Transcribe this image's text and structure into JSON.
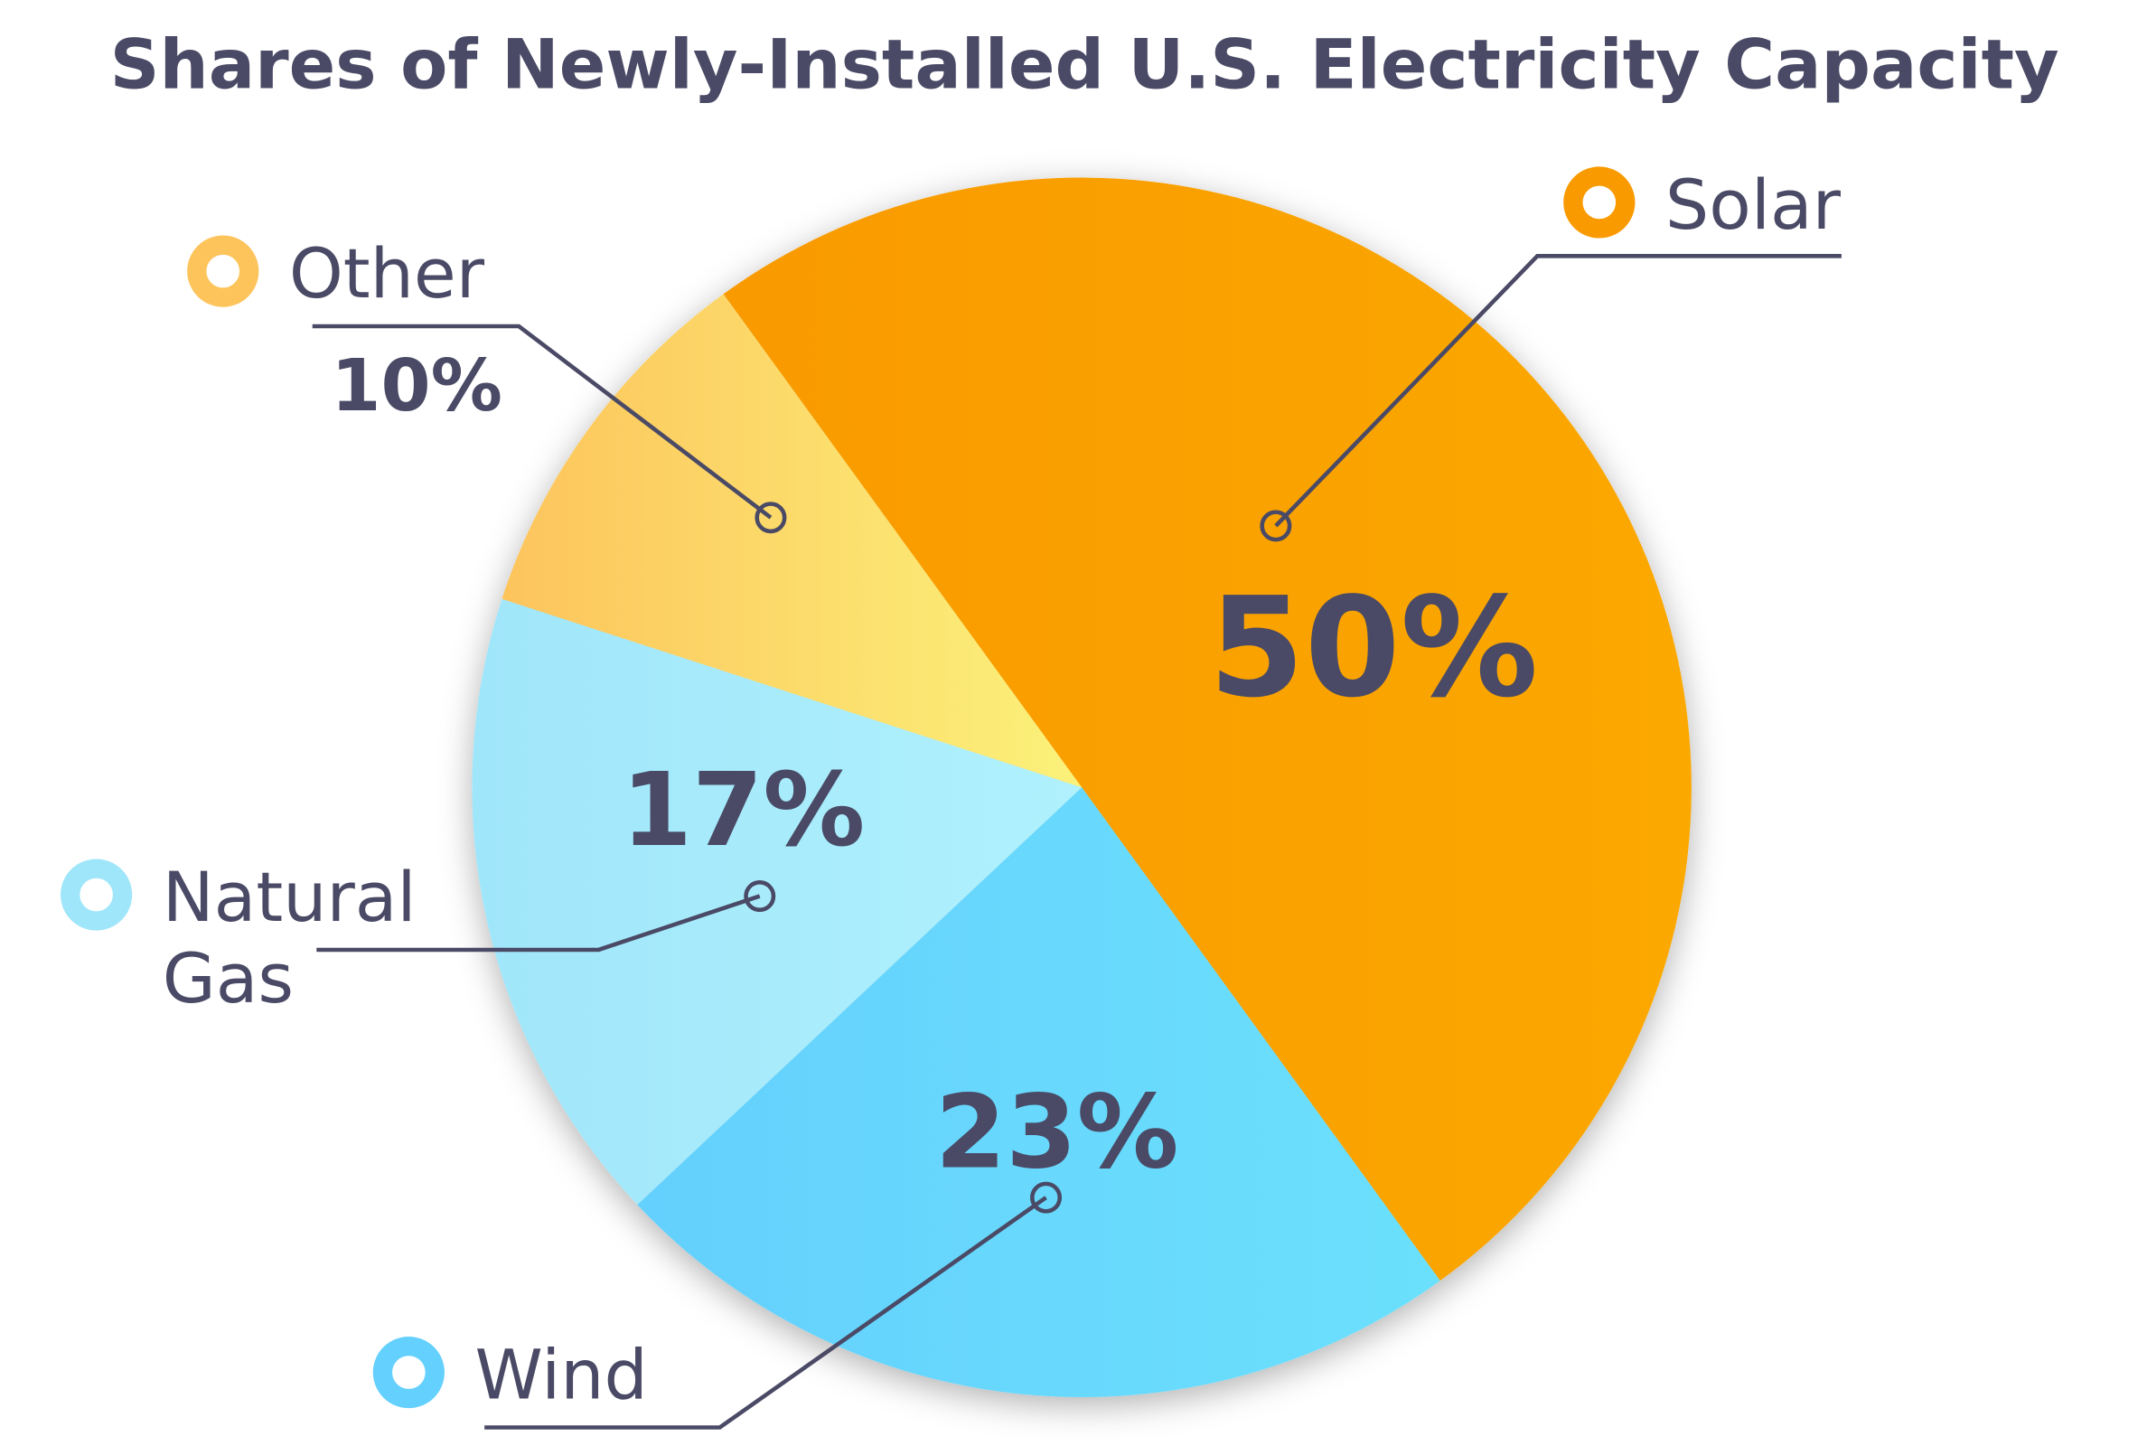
{
  "chart_data": {
    "type": "pie",
    "title": "Shares of Newly-Installed U.S. Electricity Capacity",
    "slices": [
      {
        "label": "Solar",
        "value": 50,
        "value_label": "50%",
        "color": "#fba800",
        "color2": "#f99a00"
      },
      {
        "label": "Wind",
        "value": 23,
        "value_label": "23%",
        "color": "#6be0fc",
        "color2": "#64d0fd"
      },
      {
        "label": "Natural Gas",
        "label_lines": [
          "Natural",
          "Gas"
        ],
        "value": 17,
        "value_label": "17%",
        "color": "#b0f1fd",
        "color2": "#a0e6fa"
      },
      {
        "label": "Other",
        "value": 10,
        "value_label": "10%",
        "color": "#fbf27a",
        "color2": "#fdc45c"
      }
    ],
    "text_color": "#4a4a66",
    "legend": "leader-line labels around pie"
  }
}
